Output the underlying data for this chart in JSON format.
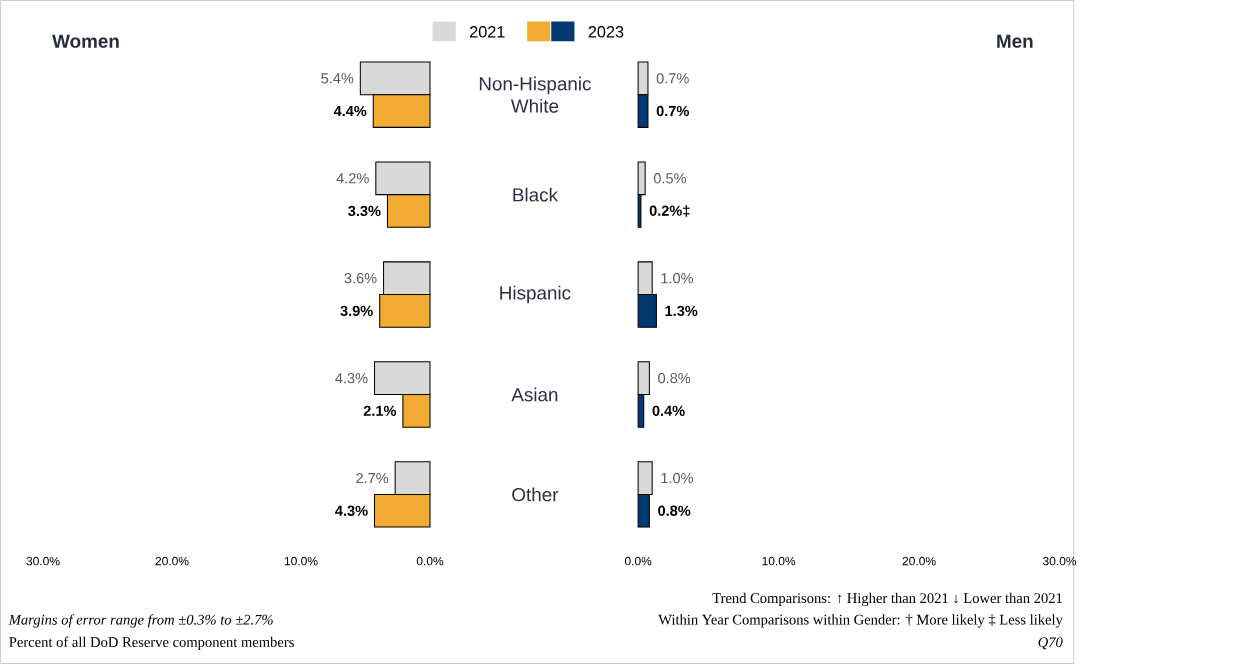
{
  "chart_data": [
    {
      "type": "bar",
      "orientation": "horizontal",
      "title": "Women",
      "legend": "top",
      "categories": [
        "Non-Hispanic White",
        "Black",
        "Hispanic",
        "Asian",
        "Other"
      ],
      "series": [
        {
          "name": "2021",
          "color": "#d9d9d9",
          "values": [
            5.4,
            4.2,
            3.6,
            4.3,
            2.7
          ],
          "value_labels": [
            "5.4%",
            "4.2%",
            "3.6%",
            "4.3%",
            "2.7%"
          ]
        },
        {
          "name": "2023",
          "color": "#f2ab32",
          "values": [
            4.4,
            3.3,
            3.9,
            2.1,
            4.3
          ],
          "value_labels": [
            "4.4%",
            "3.3%",
            "3.9%",
            "2.1%",
            "4.3%"
          ]
        }
      ],
      "xlim": [
        30,
        0
      ],
      "xticks": [
        {
          "value": 30,
          "label": "30.0%"
        },
        {
          "value": 20,
          "label": "20.0%"
        },
        {
          "value": 10,
          "label": "10.0%"
        },
        {
          "value": 0,
          "label": "0.0%"
        }
      ],
      "annotations": [
        "Margins of error range from ±0.3% to ±2.7%",
        "Percent of all DoD Reserve component members"
      ]
    },
    {
      "type": "bar",
      "orientation": "horizontal",
      "title": "Men",
      "categories": [
        null,
        null,
        null,
        null,
        null
      ],
      "series": [
        {
          "color": "#d9d9d9",
          "values": [
            0.7,
            0.5,
            1.0,
            0.8,
            1.0
          ],
          "value_labels": [
            "0.7%",
            "0.5%",
            "1.0%",
            "0.8%",
            "1.0%"
          ]
        },
        {
          "color": "#003a70",
          "values": [
            0.7,
            0.2,
            1.3,
            0.4,
            0.8
          ],
          "value_labels": [
            "0.7%",
            "0.2%‡",
            "1.3%",
            "0.4%",
            "0.8%"
          ]
        }
      ],
      "xlim": [
        0,
        30
      ],
      "xticks": [
        {
          "value": 0,
          "label": "0.0%"
        },
        {
          "value": 10,
          "label": "10.0%"
        },
        {
          "value": 20,
          "label": "20.0%"
        },
        {
          "value": 30,
          "label": "30.0%"
        }
      ],
      "annotations": [
        "Trend Comparisons: ↑ Higher than 2021 ↓ Lower than 2021",
        "Within Year Comparisons within Gender: † More likely ‡ Less likely",
        "Q70"
      ]
    }
  ]
}
